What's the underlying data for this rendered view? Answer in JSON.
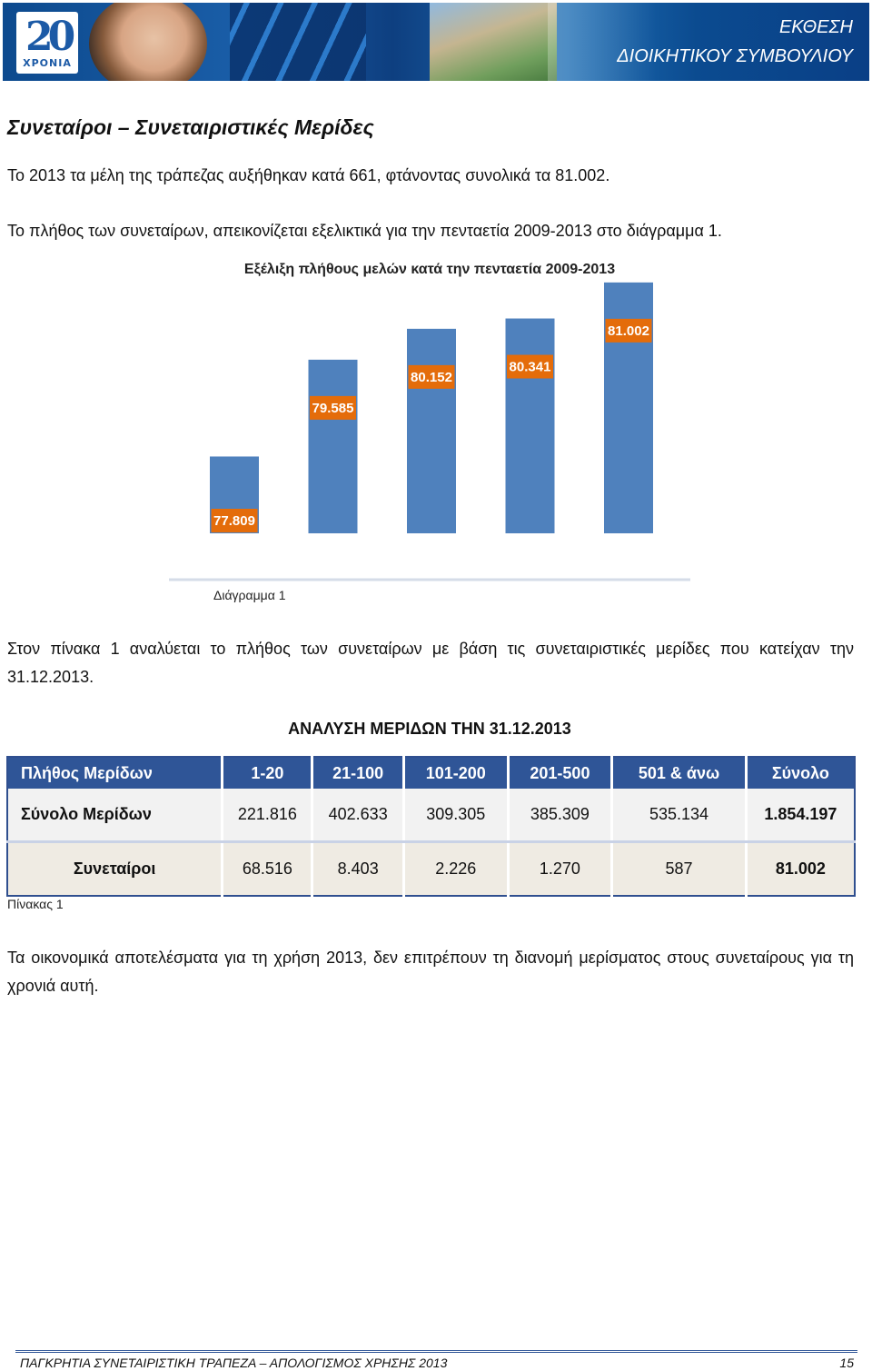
{
  "header": {
    "logo_number": "20",
    "logo_text": "ΧΡΟΝΙΑ",
    "title_line1": "ΕΚΘΕΣΗ",
    "title_line2": "ΔΙΟΙΚΗΤΙΚΟΥ ΣΥΜΒΟΥΛΙΟΥ"
  },
  "section_title": "Συνεταίροι – Συνεταιριστικές Μερίδες",
  "paragraphs": {
    "p1": "Το 2013 τα μέλη της τράπεζας αυξήθηκαν κατά 661, φτάνοντας συνολικά τα 81.002.",
    "p2": "Το πλήθος των συνεταίρων, απεικονίζεται εξελικτικά για την πενταετία 2009-2013 στο διάγραμμα 1.",
    "p3": "Στον πίνακα 1 αναλύεται το πλήθος των συνεταίρων με βάση τις συνεταιριστικές μερίδες που κατείχαν την 31.12.2013.",
    "p4": "Τα οικονομικά αποτελέσματα για τη χρήση 2013, δεν επιτρέπουν τη διανομή μερίσματος στους συνεταίρους για τη χρονιά αυτή."
  },
  "chart_data": {
    "type": "bar",
    "title": "Εξέλιξη πλήθους μελών κατά την πενταετία 2009-2013",
    "categories": [
      "",
      "",
      "",
      "",
      ""
    ],
    "values": [
      77809,
      79585,
      80152,
      80341,
      81002
    ],
    "value_labels": [
      "77.809",
      "79.585",
      "80.152",
      "80.341",
      "81.002"
    ],
    "xlabel": "",
    "ylabel": "",
    "bar_color": "#4f81bd",
    "label_color": "#e46c0a",
    "grid": false
  },
  "chart_caption": "Διάγραμμα 1",
  "table": {
    "title": "ΑΝΑΛΥΣΗ ΜΕΡΙΔΩΝ ΤΗΝ 31.12.2013",
    "headers": [
      "Πλήθος Μερίδων",
      "1-20",
      "21-100",
      "101-200",
      "201-500",
      "501 & άνω",
      "Σύνολο"
    ],
    "rows": [
      [
        "Σύνολο Μερίδων",
        "221.816",
        "402.633",
        "309.305",
        "385.309",
        "535.134",
        "1.854.197"
      ],
      [
        "Συνεταίροι",
        "68.516",
        "8.403",
        "2.226",
        "1.270",
        "587",
        "81.002"
      ]
    ],
    "caption": "Πίνακας 1",
    "header_color": "#2f5597"
  },
  "footer": {
    "left": "ΠΑΓΚΡΗΤΙΑ ΣΥΝΕΤΑΙΡΙΣΤΙΚΗ ΤΡΑΠΕΖΑ – ΑΠΟΛΟΓΙΣΜΟΣ ΧΡΗΣΗΣ 2013",
    "page": "15"
  }
}
